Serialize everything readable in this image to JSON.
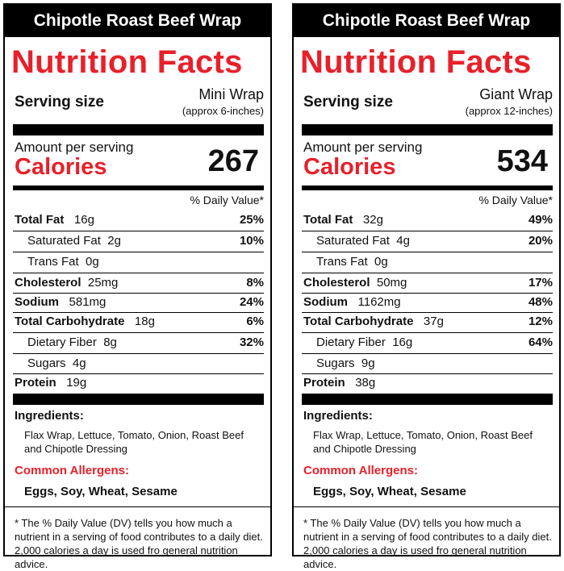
{
  "labels": [
    {
      "title": "Chipotle Roast Beef Wrap",
      "heading": "Nutrition Facts",
      "serving_label": "Serving size",
      "serving_name": "Mini Wrap",
      "serving_sub": "(approx 6-inches)",
      "amount_per_serving": "Amount per serving",
      "calories_label": "Calories",
      "calories": "267",
      "dv_header": "% Daily Value*",
      "rows": [
        {
          "name": "Total Fat",
          "amount": "16g",
          "dv": "25%"
        },
        {
          "name": "Saturated Fat",
          "amount": "2g",
          "dv": "10%"
        },
        {
          "name": "Trans Fat",
          "amount": "0g",
          "dv": ""
        },
        {
          "name": "Cholesterol",
          "amount": "25mg",
          "dv": "8%"
        },
        {
          "name": "Sodium",
          "amount": "581mg",
          "dv": "24%"
        },
        {
          "name": "Total Carbohydrate",
          "amount": "18g",
          "dv": "6%"
        },
        {
          "name": "Dietary Fiber",
          "amount": "8g",
          "dv": "32%"
        },
        {
          "name": "Sugars",
          "amount": "4g",
          "dv": ""
        },
        {
          "name": "Protein",
          "amount": "19g",
          "dv": ""
        }
      ],
      "ingredients_label": "Ingredients:",
      "ingredients": "Flax Wrap,  Lettuce, Tomato, Onion, Roast Beef and Chipotle Dressing",
      "allergens_label": "Common Allergens:",
      "allergens": "Eggs, Soy, Wheat, Sesame",
      "footnote": "* The % Daily Value (DV) tells you how much a nutrient in a serving of food contributes to a daily diet.  2,000 calories a day is used fro general nutrition advice."
    },
    {
      "title": "Chipotle Roast Beef Wrap",
      "heading": "Nutrition Facts",
      "serving_label": "Serving size",
      "serving_name": "Giant Wrap",
      "serving_sub": "(approx 12-inches)",
      "amount_per_serving": "Amount per serving",
      "calories_label": "Calories",
      "calories": "534",
      "dv_header": "% Daily Value*",
      "rows": [
        {
          "name": "Total Fat",
          "amount": "32g",
          "dv": "49%"
        },
        {
          "name": "Saturated Fat",
          "amount": "4g",
          "dv": "20%"
        },
        {
          "name": "Trans Fat",
          "amount": "0g",
          "dv": ""
        },
        {
          "name": "Cholesterol",
          "amount": "50mg",
          "dv": "17%"
        },
        {
          "name": "Sodium",
          "amount": "1162mg",
          "dv": "48%"
        },
        {
          "name": "Total Carbohydrate",
          "amount": "37g",
          "dv": "12%"
        },
        {
          "name": "Dietary Fiber",
          "amount": "16g",
          "dv": "64%"
        },
        {
          "name": "Sugars",
          "amount": "9g",
          "dv": ""
        },
        {
          "name": "Protein",
          "amount": "38g",
          "dv": ""
        }
      ],
      "ingredients_label": "Ingredients:",
      "ingredients": "Flax Wrap,  Lettuce, Tomato, Onion, Roast Beef and Chipotle Dressing",
      "allergens_label": "Common Allergens:",
      "allergens": "Eggs, Soy, Wheat, Sesame",
      "footnote": "* The % Daily Value (DV) tells you how much a nutrient in a serving of food contributes to a daily diet.  2,000 calories a day is used fro general nutrition advice."
    }
  ],
  "colors": {
    "accent_red": "#e8202a",
    "black": "#000000"
  }
}
